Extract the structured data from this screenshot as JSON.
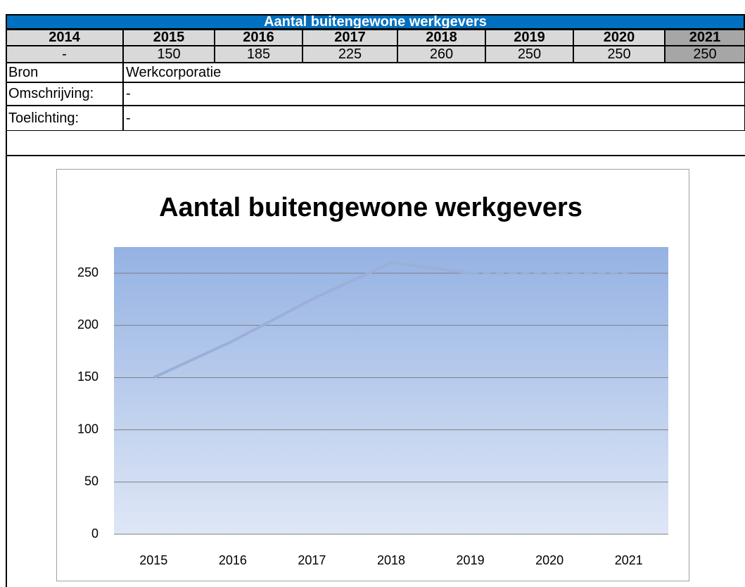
{
  "table": {
    "title": "Aantal buitengewone werkgevers",
    "years": [
      "2014",
      "2015",
      "2016",
      "2017",
      "2018",
      "2019",
      "2020",
      "2021"
    ],
    "values": [
      "-",
      "150",
      "185",
      "225",
      "260",
      "250",
      "250",
      "250"
    ],
    "rows": [
      [
        "Bron",
        "Werkcorporatie"
      ],
      [
        "Omschrijving:",
        "-"
      ],
      [
        "Toelichting:",
        "-"
      ]
    ]
  },
  "chart_data": {
    "type": "line",
    "title": "Aantal buitengewone werkgevers",
    "categories": [
      "2015",
      "2016",
      "2017",
      "2018",
      "2019",
      "2020",
      "2021"
    ],
    "series": [
      {
        "color": "#9ab0d8",
        "values": [
          150,
          185,
          225,
          260,
          250,
          null,
          null
        ]
      },
      {
        "color": "#9ab0d8",
        "dashed": true,
        "values": [
          null,
          null,
          null,
          null,
          250,
          250,
          250
        ]
      }
    ],
    "ylim": [
      0,
      275
    ],
    "yticks": [
      0,
      50,
      100,
      150,
      200,
      250
    ],
    "grid": true
  }
}
